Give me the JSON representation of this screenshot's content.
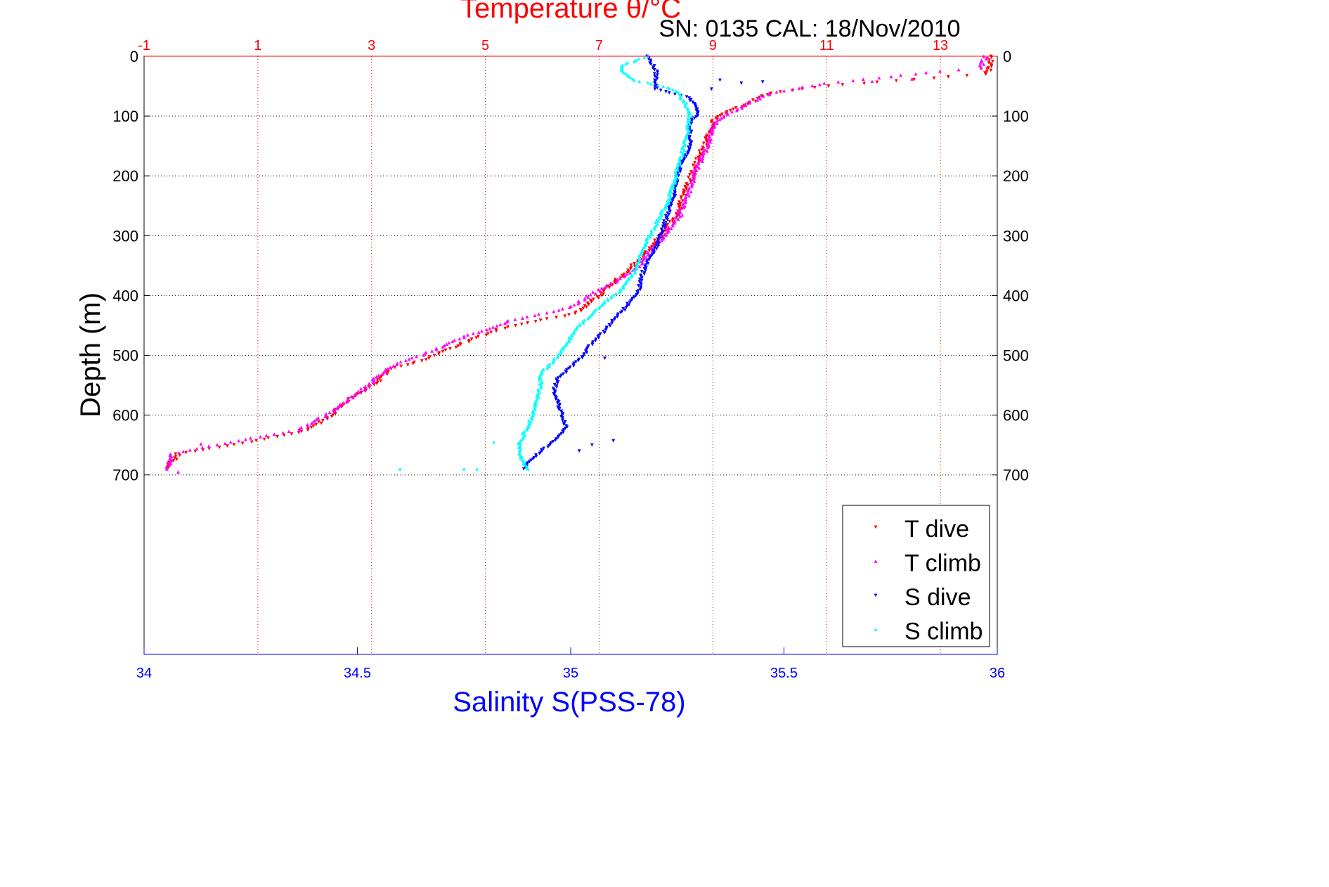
{
  "chart_data": {
    "type": "scatter",
    "title": "Temperature θ/°C",
    "subtitle": "SN: 0135  CAL: 18/Nov/2010",
    "ylabel": "Depth (m)",
    "xlabel_bottom": "Salinity S(PSS-78)",
    "xlabel_top": "Temperature θ/°C",
    "ylim": [
      0,
      1000
    ],
    "y_reversed": true,
    "yticks": [
      0,
      100,
      200,
      300,
      400,
      500,
      600,
      700
    ],
    "ytick_labels": [
      "0",
      "100",
      "200",
      "300",
      "400",
      "500",
      "600",
      "700"
    ],
    "x_bottom": {
      "range": [
        34,
        36
      ],
      "ticks": [
        34,
        34.5,
        35,
        35.5,
        36
      ],
      "tick_labels": [
        "34",
        "34.5",
        "35",
        "35.5",
        "36"
      ],
      "color": "#0000ff"
    },
    "x_top": {
      "range": [
        -1,
        14
      ],
      "ticks": [
        -1,
        1,
        3,
        5,
        7,
        9,
        11,
        13
      ],
      "tick_labels": [
        "-1",
        "1",
        "3",
        "5",
        "7",
        "9",
        "11",
        "13"
      ],
      "color": "#ff0000"
    },
    "grid": true,
    "legend_position": "bottom-right",
    "series": [
      {
        "name": "T dive",
        "axis": "top",
        "color": "#ff0000",
        "marker": "triangle-down",
        "profile": [
          [
            13.85,
            0
          ],
          [
            13.9,
            15
          ],
          [
            13.8,
            30
          ],
          [
            11.0,
            50
          ],
          [
            10.0,
            62
          ],
          [
            9.6,
            80
          ],
          [
            9.2,
            95
          ],
          [
            9.0,
            110
          ],
          [
            8.85,
            150
          ],
          [
            8.7,
            180
          ],
          [
            8.55,
            220
          ],
          [
            8.35,
            270
          ],
          [
            8.0,
            310
          ],
          [
            7.5,
            360
          ],
          [
            7.0,
            400
          ],
          [
            6.6,
            430
          ],
          [
            5.3,
            455
          ],
          [
            4.6,
            480
          ],
          [
            4.0,
            505
          ],
          [
            3.3,
            525
          ],
          [
            3.1,
            545
          ],
          [
            2.6,
            575
          ],
          [
            2.3,
            600
          ],
          [
            1.9,
            625
          ],
          [
            0.9,
            645
          ],
          [
            -0.4,
            665
          ],
          [
            -0.6,
            690
          ]
        ]
      },
      {
        "name": "T climb",
        "axis": "top",
        "color": "#ff00ff",
        "marker": "triangle-up",
        "profile": [
          [
            13.8,
            0
          ],
          [
            13.7,
            20
          ],
          [
            13.0,
            25
          ],
          [
            11.0,
            45
          ],
          [
            10.0,
            62
          ],
          [
            9.6,
            80
          ],
          [
            9.3,
            95
          ],
          [
            9.05,
            110
          ],
          [
            8.9,
            150
          ],
          [
            8.75,
            180
          ],
          [
            8.6,
            220
          ],
          [
            8.4,
            270
          ],
          [
            8.05,
            310
          ],
          [
            7.6,
            360
          ],
          [
            7.0,
            390
          ],
          [
            6.5,
            420
          ],
          [
            5.5,
            440
          ],
          [
            4.6,
            470
          ],
          [
            4.0,
            495
          ],
          [
            3.3,
            520
          ],
          [
            3.0,
            545
          ],
          [
            2.6,
            575
          ],
          [
            2.2,
            600
          ],
          [
            1.7,
            625
          ],
          [
            0.5,
            645
          ],
          [
            -0.5,
            665
          ],
          [
            -0.6,
            690
          ]
        ]
      },
      {
        "name": "S dive",
        "axis": "bottom",
        "color": "#0000ff",
        "marker": "triangle-down",
        "profile": [
          [
            35.18,
            0
          ],
          [
            35.2,
            25
          ],
          [
            35.2,
            55
          ],
          [
            35.28,
            70
          ],
          [
            35.3,
            95
          ],
          [
            35.28,
            110
          ],
          [
            35.28,
            150
          ],
          [
            35.25,
            200
          ],
          [
            35.24,
            240
          ],
          [
            35.22,
            280
          ],
          [
            35.2,
            320
          ],
          [
            35.17,
            360
          ],
          [
            35.16,
            390
          ],
          [
            35.13,
            420
          ],
          [
            35.1,
            440
          ],
          [
            35.08,
            460
          ],
          [
            35.05,
            480
          ],
          [
            35.03,
            500
          ],
          [
            35.0,
            520
          ],
          [
            34.97,
            540
          ],
          [
            34.96,
            560
          ],
          [
            34.97,
            580
          ],
          [
            34.98,
            600
          ],
          [
            34.99,
            620
          ],
          [
            34.97,
            640
          ],
          [
            34.93,
            660
          ],
          [
            34.9,
            680
          ],
          [
            34.89,
            690
          ]
        ]
      },
      {
        "name": "S climb",
        "axis": "bottom",
        "color": "#00ffff",
        "marker": "triangle-up",
        "profile": [
          [
            35.18,
            0
          ],
          [
            35.12,
            15
          ],
          [
            35.12,
            25
          ],
          [
            35.15,
            40
          ],
          [
            35.22,
            50
          ],
          [
            35.25,
            60
          ],
          [
            35.27,
            80
          ],
          [
            35.28,
            100
          ],
          [
            35.27,
            140
          ],
          [
            35.25,
            190
          ],
          [
            35.23,
            240
          ],
          [
            35.2,
            280
          ],
          [
            35.17,
            320
          ],
          [
            35.15,
            360
          ],
          [
            35.12,
            390
          ],
          [
            35.08,
            410
          ],
          [
            35.05,
            430
          ],
          [
            35.02,
            450
          ],
          [
            35.0,
            470
          ],
          [
            34.98,
            490
          ],
          [
            34.96,
            510
          ],
          [
            34.93,
            530
          ],
          [
            34.93,
            550
          ],
          [
            34.92,
            575
          ],
          [
            34.91,
            600
          ],
          [
            34.9,
            620
          ],
          [
            34.88,
            645
          ],
          [
            34.88,
            665
          ],
          [
            34.9,
            690
          ]
        ]
      }
    ],
    "outliers": [
      {
        "series": "T climb",
        "points": [
          [
            12.5,
            38
          ],
          [
            11.8,
            42
          ],
          [
            0.0,
            648
          ],
          [
            -0.4,
            695
          ]
        ]
      },
      {
        "series": "S dive",
        "points": [
          [
            35.33,
            55
          ],
          [
            35.35,
            40
          ],
          [
            35.4,
            45
          ],
          [
            35.45,
            43
          ],
          [
            35.08,
            505
          ],
          [
            35.1,
            643
          ],
          [
            35.05,
            650
          ],
          [
            35.02,
            660
          ],
          [
            35.29,
            80
          ]
        ]
      },
      {
        "series": "S climb",
        "points": [
          [
            34.6,
            690
          ],
          [
            34.75,
            690
          ],
          [
            34.78,
            690
          ],
          [
            35.12,
            20
          ],
          [
            34.82,
            645
          ]
        ]
      }
    ]
  }
}
